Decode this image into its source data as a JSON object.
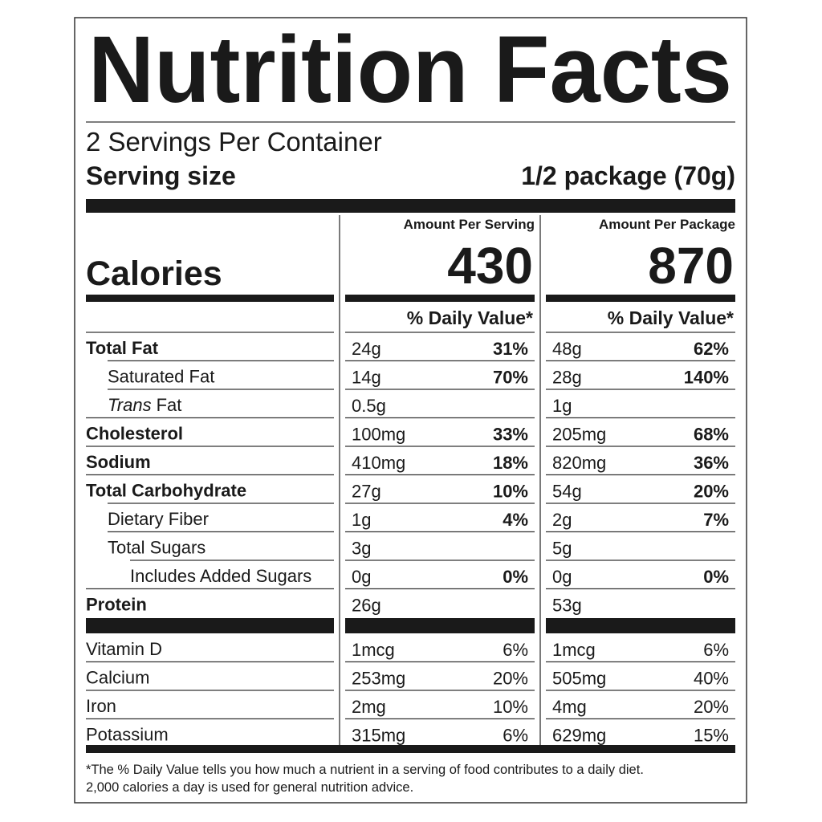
{
  "header": {
    "title": "Nutrition Facts",
    "servings": "2 Servings Per Container",
    "serving_size_label": "Serving size",
    "serving_size": "1/2 package (70g)"
  },
  "calories_label": "Calories",
  "columns": [
    {
      "heading": "Amount Per Serving",
      "calories": "430",
      "dv_heading": "% Daily Value*"
    },
    {
      "heading": "Amount Per Package",
      "calories": "870",
      "dv_heading": "% Daily Value*"
    }
  ],
  "nutrients": [
    {
      "name": "Total Fat",
      "bold": true,
      "indent": 0,
      "values": [
        {
          "amount": "24g",
          "dv": "31%"
        },
        {
          "amount": "48g",
          "dv": "62%"
        }
      ]
    },
    {
      "name": "Saturated Fat",
      "bold": false,
      "indent": 1,
      "values": [
        {
          "amount": "14g",
          "dv": "70%"
        },
        {
          "amount": "28g",
          "dv": "140%"
        }
      ]
    },
    {
      "name_italic": "Trans",
      "name": "Fat",
      "bold": false,
      "indent": 1,
      "values": [
        {
          "amount": "0.5g"
        },
        {
          "amount": "1g"
        }
      ]
    },
    {
      "name": "Cholesterol",
      "bold": true,
      "indent": 0,
      "values": [
        {
          "amount": "100mg",
          "dv": "33%"
        },
        {
          "amount": "205mg",
          "dv": "68%"
        }
      ]
    },
    {
      "name": "Sodium",
      "bold": true,
      "indent": 0,
      "values": [
        {
          "amount": "410mg",
          "dv": "18%"
        },
        {
          "amount": "820mg",
          "dv": "36%"
        }
      ]
    },
    {
      "name": "Total Carbohydrate",
      "bold": true,
      "indent": 0,
      "values": [
        {
          "amount": "27g",
          "dv": "10%"
        },
        {
          "amount": "54g",
          "dv": "20%"
        }
      ]
    },
    {
      "name": "Dietary Fiber",
      "bold": false,
      "indent": 1,
      "values": [
        {
          "amount": "1g",
          "dv": "4%"
        },
        {
          "amount": "2g",
          "dv": "7%"
        }
      ]
    },
    {
      "name": "Total Sugars",
      "bold": false,
      "indent": 1,
      "values": [
        {
          "amount": "3g"
        },
        {
          "amount": "5g"
        }
      ]
    },
    {
      "name": "Includes Added Sugars",
      "bold": false,
      "indent": 2,
      "values": [
        {
          "amount": "0g",
          "dv": "0%"
        },
        {
          "amount": "0g",
          "dv": "0%"
        }
      ]
    },
    {
      "name": "Protein",
      "bold": true,
      "indent": 0,
      "values": [
        {
          "amount": "26g"
        },
        {
          "amount": "53g"
        }
      ]
    }
  ],
  "vitamins": [
    {
      "name": "Vitamin D",
      "values": [
        {
          "amount": "1mcg",
          "dv": "6%"
        },
        {
          "amount": "1mcg",
          "dv": "6%"
        }
      ]
    },
    {
      "name": "Calcium",
      "values": [
        {
          "amount": "253mg",
          "dv": "20%"
        },
        {
          "amount": "505mg",
          "dv": "40%"
        }
      ]
    },
    {
      "name": "Iron",
      "values": [
        {
          "amount": "2mg",
          "dv": "10%"
        },
        {
          "amount": "4mg",
          "dv": "20%"
        }
      ]
    },
    {
      "name": "Potassium",
      "values": [
        {
          "amount": "315mg",
          "dv": "6%"
        },
        {
          "amount": "629mg",
          "dv": "15%"
        }
      ]
    }
  ],
  "footnote": [
    "*The % Daily Value tells you how much a nutrient in a serving of food contributes to a daily diet.",
    "2,000 calories a day is used for general nutrition advice."
  ]
}
